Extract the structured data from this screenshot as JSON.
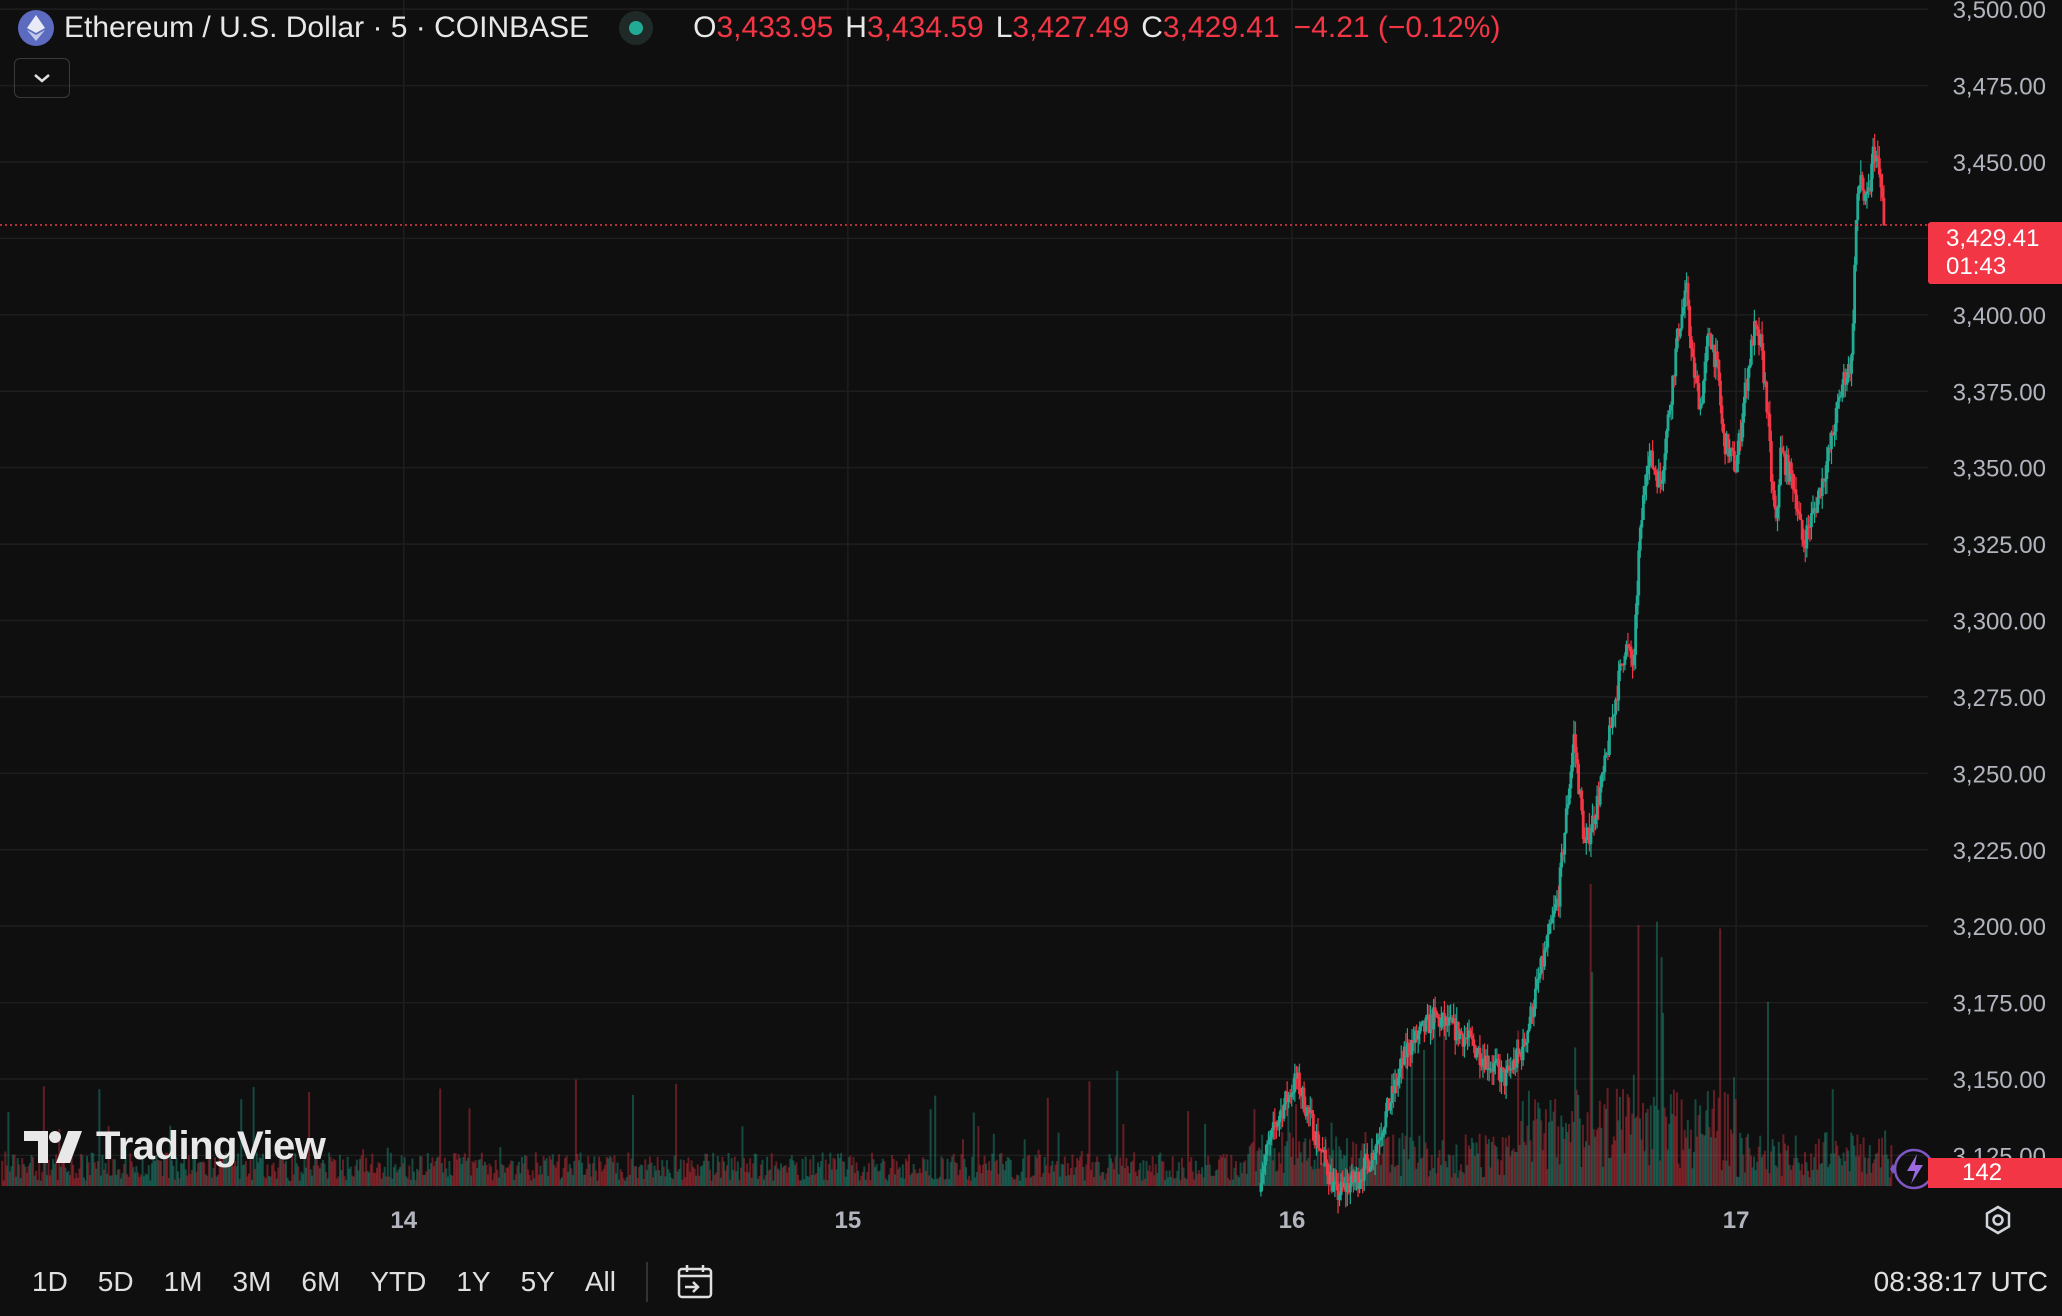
{
  "header": {
    "symbol_title": "Ethereum / U.S. Dollar · 5 · COINBASE",
    "open_label": "O",
    "open": "3,433.95",
    "high_label": "H",
    "high": "3,434.59",
    "low_label": "L",
    "low": "3,427.49",
    "close_label": "C",
    "close": "3,429.41",
    "change": "−4.21 (−0.12%)"
  },
  "logo_text": "TradingView",
  "price_tag": {
    "price": "3,429.41",
    "countdown": "01:43"
  },
  "volume_tag": "142",
  "range_buttons": [
    "1D",
    "5D",
    "1M",
    "3M",
    "6M",
    "YTD",
    "1Y",
    "5Y",
    "All"
  ],
  "clock": "08:38:17 UTC",
  "colors": {
    "up": "#22ab94",
    "down": "#f23645",
    "background": "#0f0f0f",
    "grid": "#1e1e1e"
  },
  "chart_data": {
    "type": "candlestick",
    "interval": "5",
    "y_axis_ticks": [
      "3,125.00",
      "3,150.00",
      "3,175.00",
      "3,200.00",
      "3,225.00",
      "3,250.00",
      "3,275.00",
      "3,300.00",
      "3,325.00",
      "3,350.00",
      "3,375.00",
      "3,400.00",
      "3,425.00",
      "3,450.00",
      "3,475.00",
      "3,500.00"
    ],
    "ylim": [
      3115,
      3503
    ],
    "x_axis_ticks": [
      "14",
      "15",
      "16",
      "17"
    ],
    "xlim": [
      13.091,
      17.432
    ],
    "last_price": 3429.41,
    "price_path": [
      [
        15.93,
        3120
      ],
      [
        15.97,
        3138
      ],
      [
        16.01,
        3150
      ],
      [
        16.05,
        3133
      ],
      [
        16.1,
        3112
      ],
      [
        16.15,
        3118
      ],
      [
        16.18,
        3125
      ],
      [
        16.22,
        3142
      ],
      [
        16.26,
        3160
      ],
      [
        16.32,
        3170
      ],
      [
        16.38,
        3165
      ],
      [
        16.44,
        3156
      ],
      [
        16.48,
        3150
      ],
      [
        16.52,
        3160
      ],
      [
        16.56,
        3185
      ],
      [
        16.6,
        3210
      ],
      [
        16.62,
        3240
      ],
      [
        16.635,
        3262
      ],
      [
        16.66,
        3225
      ],
      [
        16.7,
        3248
      ],
      [
        16.73,
        3276
      ],
      [
        16.75,
        3292
      ],
      [
        16.77,
        3285
      ],
      [
        16.78,
        3320
      ],
      [
        16.8,
        3355
      ],
      [
        16.83,
        3345
      ],
      [
        16.85,
        3370
      ],
      [
        16.87,
        3395
      ],
      [
        16.89,
        3408
      ],
      [
        16.9,
        3385
      ],
      [
        16.92,
        3370
      ],
      [
        16.94,
        3395
      ],
      [
        16.96,
        3380
      ],
      [
        16.97,
        3360
      ],
      [
        17.0,
        3350
      ],
      [
        17.02,
        3375
      ],
      [
        17.04,
        3395
      ],
      [
        17.055,
        3390
      ],
      [
        17.07,
        3370
      ],
      [
        17.08,
        3345
      ],
      [
        17.09,
        3330
      ],
      [
        17.1,
        3355
      ],
      [
        17.13,
        3345
      ],
      [
        17.15,
        3325
      ],
      [
        17.18,
        3338
      ],
      [
        17.21,
        3355
      ],
      [
        17.24,
        3378
      ],
      [
        17.26,
        3385
      ],
      [
        17.27,
        3430
      ],
      [
        17.28,
        3447
      ],
      [
        17.29,
        3435
      ],
      [
        17.3,
        3440
      ],
      [
        17.31,
        3455
      ],
      [
        17.32,
        3448
      ],
      [
        17.33,
        3436
      ],
      [
        17.335,
        3429.41
      ]
    ]
  }
}
